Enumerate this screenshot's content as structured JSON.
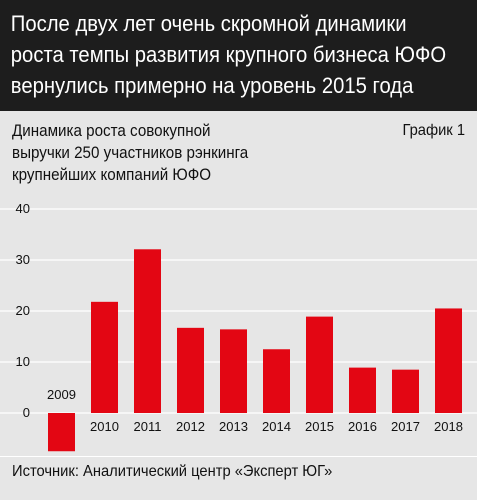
{
  "header": {
    "title_lines": [
      "После двух лет очень скромной динамики",
      "роста темпы развития крупного бизнеса ЮФО",
      "вернулись примерно на уровень 2015 года"
    ]
  },
  "chart_meta": {
    "badge": "График 1",
    "source": "Источник: Аналитический центр «Эксперт ЮГ»"
  },
  "chart_data": {
    "type": "bar",
    "title_lines": [
      "Динамика роста совокупной",
      "выручки 250 участников рэнкинга",
      "крупнейших компаний ЮФО"
    ],
    "categories": [
      "2009",
      "2010",
      "2011",
      "2012",
      "2013",
      "2014",
      "2015",
      "2016",
      "2017",
      "2018"
    ],
    "values": [
      -7.5,
      21.8,
      32.1,
      16.7,
      16.4,
      12.5,
      18.9,
      8.9,
      8.5,
      20.5
    ],
    "yticks": [
      0,
      10,
      20,
      30,
      40
    ],
    "ylim": [
      -8,
      40
    ],
    "bar_color": "#e30613",
    "grid": true,
    "legend": "none"
  }
}
